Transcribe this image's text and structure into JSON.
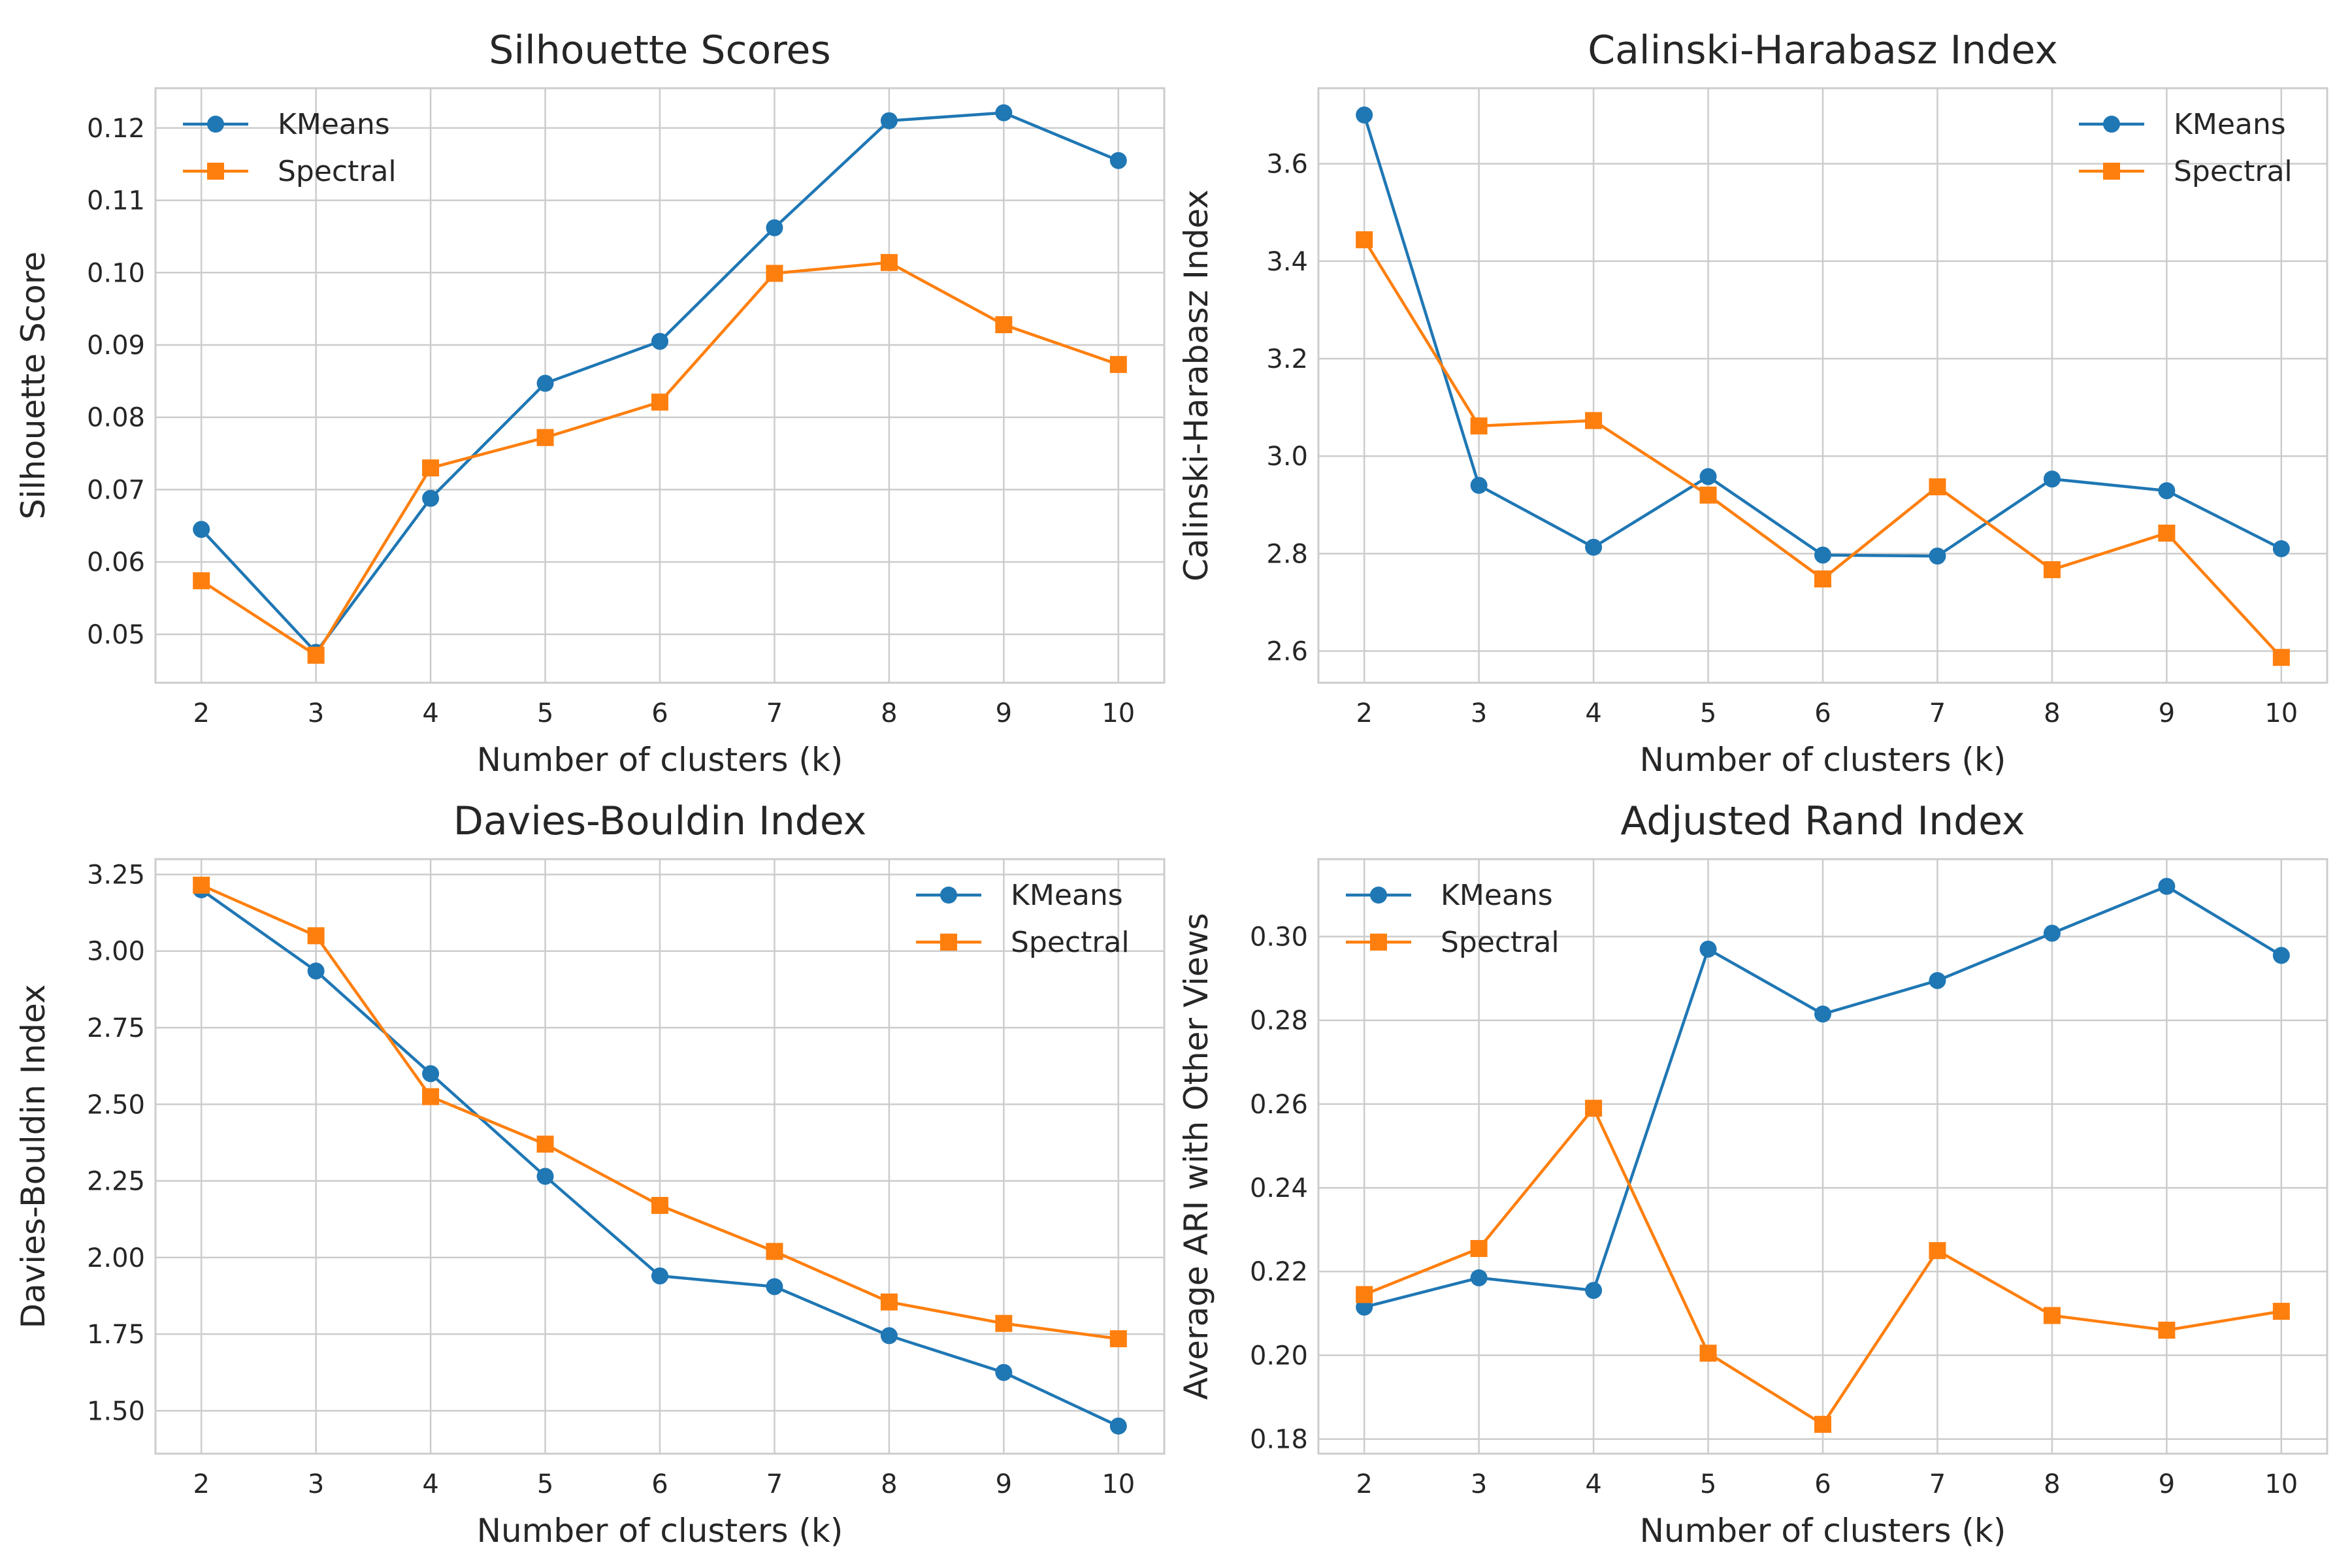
{
  "chart_data": [
    {
      "type": "line",
      "title": "Silhouette Scores",
      "xlabel": "Number of clusters (k)",
      "ylabel": "Silhouette Score",
      "x": [
        2,
        3,
        4,
        5,
        6,
        7,
        8,
        9,
        10
      ],
      "xlim": [
        1.6,
        10.4
      ],
      "ylim": [
        0.0433,
        0.1255
      ],
      "yticks": [
        0.05,
        0.06,
        0.07,
        0.08,
        0.09,
        0.1,
        0.11,
        0.12
      ],
      "ytick_labels": [
        "0.05",
        "0.06",
        "0.07",
        "0.08",
        "0.09",
        "0.10",
        "0.11",
        "0.12"
      ],
      "grid": true,
      "legend_loc": "upper-left",
      "series": [
        {
          "name": "KMeans",
          "color": "#1f77b4",
          "marker": "circle",
          "values": [
            0.0645,
            0.0475,
            0.0688,
            0.0847,
            0.0905,
            0.1062,
            0.121,
            0.1221,
            0.1155
          ]
        },
        {
          "name": "Spectral",
          "color": "#ff7f0e",
          "marker": "square",
          "values": [
            0.0574,
            0.0471,
            0.073,
            0.0772,
            0.0821,
            0.0999,
            0.1014,
            0.0928,
            0.0873
          ]
        }
      ]
    },
    {
      "type": "line",
      "title": "Calinski-Harabasz Index",
      "xlabel": "Number of clusters (k)",
      "ylabel": "Calinski-Harabasz Index",
      "x": [
        2,
        3,
        4,
        5,
        6,
        7,
        8,
        9,
        10
      ],
      "xlim": [
        1.6,
        10.4
      ],
      "ylim": [
        2.535,
        3.755
      ],
      "yticks": [
        2.6,
        2.8,
        3.0,
        3.2,
        3.4,
        3.6
      ],
      "ytick_labels": [
        "2.6",
        "2.8",
        "3.0",
        "3.2",
        "3.4",
        "3.6"
      ],
      "grid": true,
      "legend_loc": "upper-right",
      "series": [
        {
          "name": "KMeans",
          "color": "#1f77b4",
          "marker": "circle",
          "values": [
            3.7,
            2.94,
            2.813,
            2.958,
            2.797,
            2.795,
            2.953,
            2.929,
            2.81
          ]
        },
        {
          "name": "Spectral",
          "color": "#ff7f0e",
          "marker": "square",
          "values": [
            3.444,
            3.062,
            3.073,
            2.92,
            2.748,
            2.937,
            2.767,
            2.842,
            2.587
          ]
        }
      ]
    },
    {
      "type": "line",
      "title": "Davies-Bouldin Index",
      "xlabel": "Number of clusters (k)",
      "ylabel": "Davies-Bouldin Index",
      "x": [
        2,
        3,
        4,
        5,
        6,
        7,
        8,
        9,
        10
      ],
      "xlim": [
        1.6,
        10.4
      ],
      "ylim": [
        1.36,
        3.3
      ],
      "yticks": [
        1.5,
        1.75,
        2.0,
        2.25,
        2.5,
        2.75,
        3.0,
        3.25
      ],
      "ytick_labels": [
        "1.50",
        "1.75",
        "2.00",
        "2.25",
        "2.50",
        "2.75",
        "3.00",
        "3.25"
      ],
      "grid": true,
      "legend_loc": "upper-right",
      "series": [
        {
          "name": "KMeans",
          "color": "#1f77b4",
          "marker": "circle",
          "values": [
            3.2,
            2.935,
            2.6,
            2.265,
            1.94,
            1.905,
            1.745,
            1.625,
            1.45
          ]
        },
        {
          "name": "Spectral",
          "color": "#ff7f0e",
          "marker": "square",
          "values": [
            3.215,
            3.05,
            2.525,
            2.37,
            2.17,
            2.02,
            1.855,
            1.785,
            1.735
          ]
        }
      ]
    },
    {
      "type": "line",
      "title": "Adjusted Rand Index",
      "xlabel": "Number of clusters (k)",
      "ylabel": "Average ARI with Other Views",
      "x": [
        2,
        3,
        4,
        5,
        6,
        7,
        8,
        9,
        10
      ],
      "xlim": [
        1.6,
        10.4
      ],
      "ylim": [
        0.1765,
        0.3185
      ],
      "yticks": [
        0.18,
        0.2,
        0.22,
        0.24,
        0.26,
        0.28,
        0.3
      ],
      "ytick_labels": [
        "0.18",
        "0.20",
        "0.22",
        "0.24",
        "0.26",
        "0.28",
        "0.30"
      ],
      "grid": true,
      "legend_loc": "upper-left",
      "series": [
        {
          "name": "KMeans",
          "color": "#1f77b4",
          "marker": "circle",
          "values": [
            0.2115,
            0.2185,
            0.2155,
            0.297,
            0.2815,
            0.2895,
            0.3008,
            0.312,
            0.2955
          ]
        },
        {
          "name": "Spectral",
          "color": "#ff7f0e",
          "marker": "square",
          "values": [
            0.2145,
            0.2255,
            0.259,
            0.2005,
            0.1835,
            0.225,
            0.2095,
            0.206,
            0.2105
          ]
        }
      ]
    }
  ]
}
